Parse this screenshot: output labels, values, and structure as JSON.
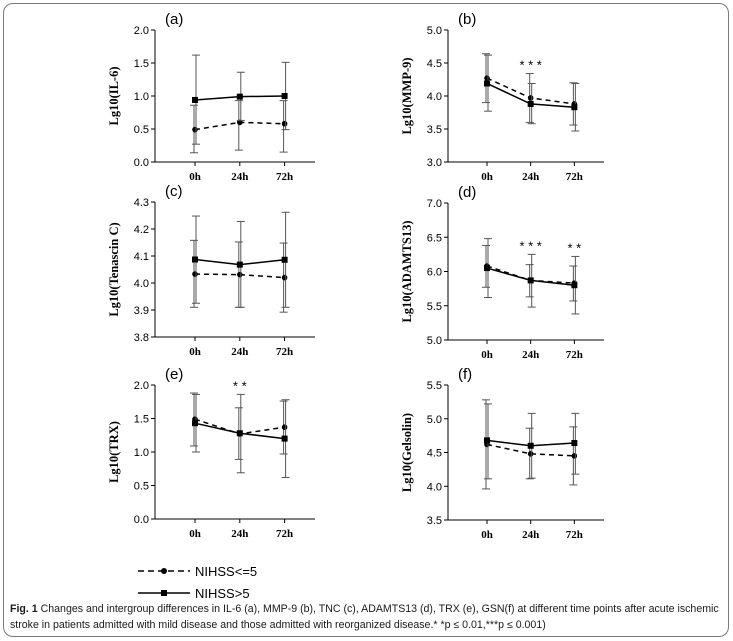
{
  "chart_data": [
    {
      "type": "line",
      "panel": "(a)",
      "ylabel": "Lg10(IL-6)",
      "categories": [
        "0h",
        "24h",
        "72h"
      ],
      "yticks": [
        "0.0",
        "0.5",
        "1.0",
        "1.5",
        "2.0"
      ],
      "ylim": [
        0,
        2
      ],
      "series": [
        {
          "name": "NIHSS<=5",
          "values": [
            0.49,
            0.6,
            0.58
          ],
          "upper": [
            0.86,
            0.93,
            0.93
          ],
          "lower": [
            0.14,
            0.18,
            0.15
          ]
        },
        {
          "name": "NIHSS>5",
          "values": [
            0.94,
            0.99,
            1.0
          ],
          "upper": [
            1.62,
            1.36,
            1.51
          ],
          "lower": [
            0.27,
            0.63,
            0.49
          ]
        }
      ],
      "sig": [
        null,
        null,
        null
      ]
    },
    {
      "type": "line",
      "panel": "(b)",
      "ylabel": "Lg10(MMP-9)",
      "categories": [
        "0h",
        "24h",
        "72h"
      ],
      "yticks": [
        "3.0",
        "3.5",
        "4.0",
        "4.5",
        "5.0"
      ],
      "ylim": [
        3,
        5
      ],
      "series": [
        {
          "name": "NIHSS<=5",
          "values": [
            4.27,
            3.97,
            3.88
          ],
          "upper": [
            4.64,
            4.34,
            4.2
          ],
          "lower": [
            3.9,
            3.6,
            3.56
          ]
        },
        {
          "name": "NIHSS>5",
          "values": [
            4.19,
            3.88,
            3.83
          ],
          "upper": [
            4.62,
            4.19,
            4.19
          ],
          "lower": [
            3.77,
            3.58,
            3.47
          ]
        }
      ],
      "sig": [
        null,
        "* * *",
        null
      ]
    },
    {
      "type": "line",
      "panel": "(c)",
      "ylabel": "Lg10(Tenascin C)",
      "categories": [
        "0h",
        "24h",
        "72h"
      ],
      "yticks": [
        "3.8",
        "3.9",
        "4.0",
        "4.1",
        "4.2",
        "4.3"
      ],
      "ylim": [
        3.8,
        4.3
      ],
      "series": [
        {
          "name": "NIHSS<=5",
          "values": [
            4.033,
            4.031,
            4.02
          ],
          "upper": [
            4.158,
            4.152,
            4.148
          ],
          "lower": [
            3.91,
            3.91,
            3.892
          ]
        },
        {
          "name": "NIHSS>5",
          "values": [
            4.087,
            4.068,
            4.086
          ],
          "upper": [
            4.248,
            4.228,
            4.262
          ],
          "lower": [
            3.925,
            3.91,
            3.91
          ]
        }
      ],
      "sig": [
        null,
        null,
        null
      ]
    },
    {
      "type": "line",
      "panel": "(d)",
      "ylabel": "Lg10(ADAMTS13)",
      "categories": [
        "0h",
        "24h",
        "72h"
      ],
      "yticks": [
        "5.0",
        "5.5",
        "6.0",
        "6.5",
        "7.0"
      ],
      "ylim": [
        5,
        7
      ],
      "series": [
        {
          "name": "NIHSS<=5",
          "values": [
            6.08,
            5.87,
            5.83
          ],
          "upper": [
            6.38,
            6.1,
            6.08
          ],
          "lower": [
            5.77,
            5.63,
            5.57
          ]
        },
        {
          "name": "NIHSS>5",
          "values": [
            6.05,
            5.87,
            5.8
          ],
          "upper": [
            6.48,
            6.25,
            6.22
          ],
          "lower": [
            5.62,
            5.48,
            5.38
          ]
        }
      ],
      "sig": [
        null,
        "* * *",
        "* *"
      ]
    },
    {
      "type": "line",
      "panel": "(e)",
      "ylabel": "Lg10(TRX)",
      "categories": [
        "0h",
        "24h",
        "72h"
      ],
      "yticks": [
        "0.0",
        "0.5",
        "1.0",
        "1.5",
        "2.0"
      ],
      "ylim": [
        0,
        2
      ],
      "series": [
        {
          "name": "NIHSS<=5",
          "values": [
            1.49,
            1.27,
            1.37
          ],
          "upper": [
            1.88,
            1.66,
            1.76
          ],
          "lower": [
            1.09,
            0.89,
            0.97
          ]
        },
        {
          "name": "NIHSS>5",
          "values": [
            1.43,
            1.28,
            1.2
          ],
          "upper": [
            1.86,
            1.86,
            1.78
          ],
          "lower": [
            1.0,
            0.69,
            0.62
          ]
        }
      ],
      "sig": [
        null,
        "* *",
        null
      ]
    },
    {
      "type": "line",
      "panel": "(f)",
      "ylabel": "Lg10(Gelsolin)",
      "categories": [
        "0h",
        "24h",
        "72h"
      ],
      "yticks": [
        "3.5",
        "4.0",
        "4.5",
        "5.0",
        "5.5"
      ],
      "ylim": [
        3.5,
        5.5
      ],
      "series": [
        {
          "name": "NIHSS<=5",
          "values": [
            4.62,
            4.48,
            4.45
          ],
          "upper": [
            5.28,
            4.86,
            4.88
          ],
          "lower": [
            3.96,
            4.11,
            4.02
          ]
        },
        {
          "name": "NIHSS>5",
          "values": [
            4.68,
            4.6,
            4.64
          ],
          "upper": [
            5.22,
            5.08,
            5.08
          ],
          "lower": [
            4.11,
            4.12,
            4.18
          ]
        }
      ],
      "sig": [
        null,
        null,
        null
      ]
    }
  ],
  "legend": {
    "items": [
      {
        "label": "NIHSS<=5",
        "style": "dashed",
        "marker": "circle"
      },
      {
        "label": "NIHSS>5",
        "style": "solid",
        "marker": "square"
      }
    ]
  },
  "caption": {
    "label": "Fig. 1",
    "text": "Changes and intergroup differences in IL-6 (a), MMP-9 (b), TNC (c), ADAMTS13 (d), TRX (e), GSN(f) at different time points after acute ischemic stroke in patients admitted with mild disease and those admitted with reorganized disease.* *p ≤ 0.01,***p ≤ 0.001)"
  },
  "colors": {
    "line": "#000000",
    "errorbar": "#555555",
    "border": "#7a7a7a"
  }
}
